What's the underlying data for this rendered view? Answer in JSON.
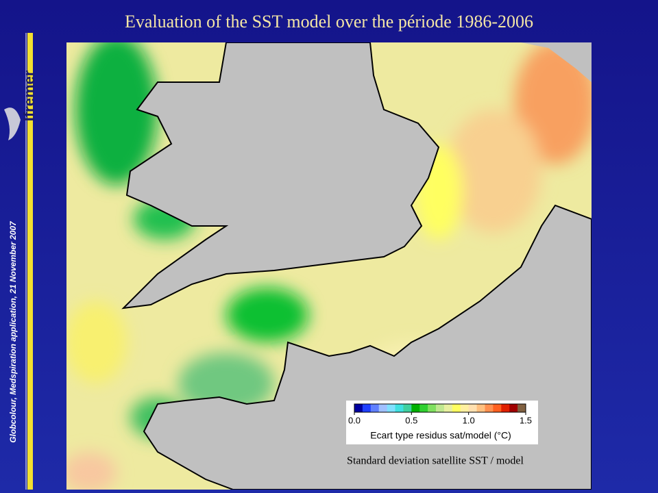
{
  "slide": {
    "title": "Evaluation of the SST model over the période 1986-2006",
    "side_note": "Globcolour, Medspiration application, 21 November 2007",
    "logo": "Ifremer",
    "caption": "Standard deviation satellite SST / model"
  },
  "colorbar": {
    "label": "Ecart type residus sat/model (°C)",
    "vlim": [
      0,
      1.5
    ],
    "ticks": [
      {
        "value": 0,
        "label": "0.0"
      },
      {
        "value": 0.5,
        "label": "0.5"
      },
      {
        "value": 1,
        "label": "1.0"
      },
      {
        "value": 1.5,
        "label": "1.5"
      }
    ],
    "colors": [
      "#0000a0",
      "#2040ff",
      "#6080ff",
      "#a0c0ff",
      "#80e0ff",
      "#40e0e0",
      "#40d0a0",
      "#00b000",
      "#30d030",
      "#80e060",
      "#c0e890",
      "#e8f0a0",
      "#ffff60",
      "#fff0a0",
      "#ffe0b0",
      "#ffc080",
      "#ff9050",
      "#ff6020",
      "#e02000",
      "#a00000",
      "#806040"
    ]
  }
}
